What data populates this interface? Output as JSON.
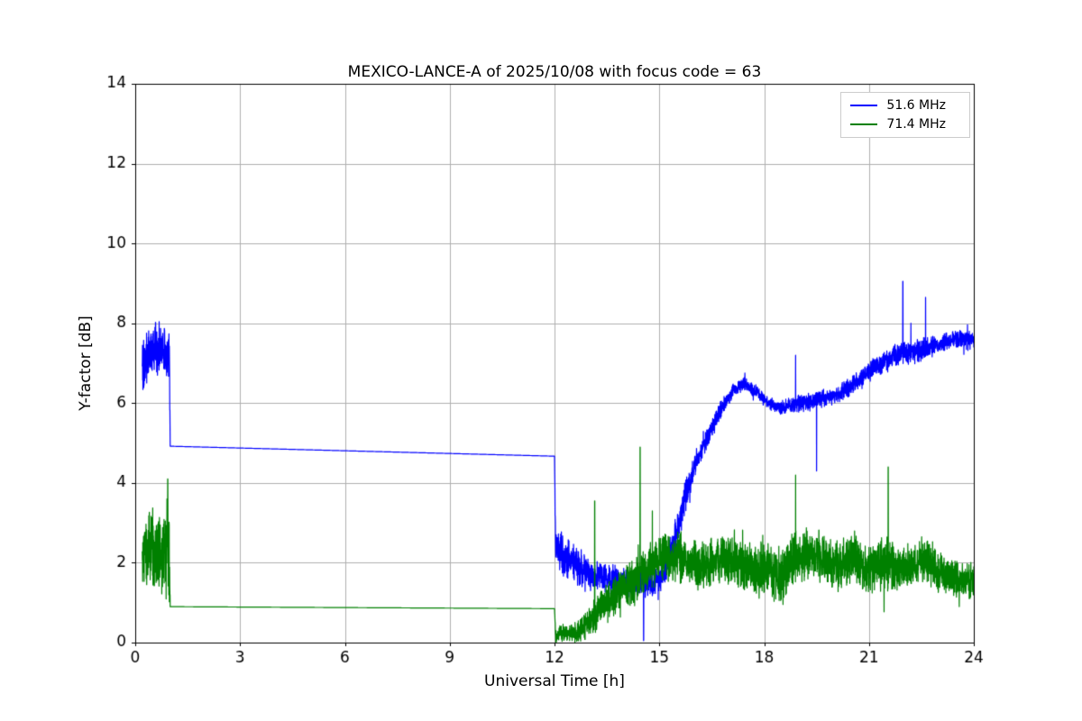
{
  "chart_data": {
    "type": "line",
    "title": "MEXICO-LANCE-A of 2025/10/08 with focus code = 63",
    "xlabel": "Universal Time [h]",
    "ylabel": "Y-factor [dB]",
    "xlim": [
      0,
      24
    ],
    "ylim": [
      0,
      14
    ],
    "xticks": [
      0,
      3,
      6,
      9,
      12,
      15,
      18,
      21,
      24
    ],
    "yticks": [
      0,
      2,
      4,
      6,
      8,
      10,
      12,
      14
    ],
    "grid": true,
    "grid_color": "#b0b0b0",
    "axes_color": "#000000",
    "background": "#ffffff",
    "legend_position": "upper right",
    "series": [
      {
        "name": "51.6 MHz",
        "color": "#0000ff",
        "seed": 101,
        "sample_step": 0.004,
        "line_width": 1.2,
        "anchors": [
          [
            0.2,
            7.0,
            0.5
          ],
          [
            0.35,
            7.1,
            0.55
          ],
          [
            0.55,
            7.4,
            0.5
          ],
          [
            0.8,
            7.4,
            0.45
          ],
          [
            0.98,
            7.2,
            0.5
          ],
          [
            1.0,
            4.92,
            0
          ],
          [
            12.0,
            4.67,
            0
          ],
          [
            12.03,
            2.35,
            0.4
          ],
          [
            12.5,
            2.0,
            0.35
          ],
          [
            13.0,
            1.7,
            0.3
          ],
          [
            13.6,
            1.6,
            0.25
          ],
          [
            14.2,
            1.5,
            0.22
          ],
          [
            14.8,
            1.45,
            0.22
          ],
          [
            15.1,
            1.7,
            0.25
          ],
          [
            15.4,
            2.5,
            0.3
          ],
          [
            15.7,
            3.5,
            0.3
          ],
          [
            16.0,
            4.4,
            0.22
          ],
          [
            16.4,
            5.2,
            0.18
          ],
          [
            16.8,
            5.9,
            0.15
          ],
          [
            17.1,
            6.3,
            0.12
          ],
          [
            17.4,
            6.5,
            0.12
          ],
          [
            17.8,
            6.25,
            0.12
          ],
          [
            18.1,
            6.0,
            0.12
          ],
          [
            18.5,
            5.9,
            0.13
          ],
          [
            19.0,
            6.0,
            0.15
          ],
          [
            19.6,
            6.1,
            0.15
          ],
          [
            20.1,
            6.2,
            0.15
          ],
          [
            20.6,
            6.5,
            0.17
          ],
          [
            21.0,
            6.8,
            0.18
          ],
          [
            21.4,
            7.0,
            0.2
          ],
          [
            21.9,
            7.25,
            0.2
          ],
          [
            22.4,
            7.3,
            0.2
          ],
          [
            22.9,
            7.45,
            0.16
          ],
          [
            23.4,
            7.6,
            0.15
          ],
          [
            24.0,
            7.6,
            0.15
          ]
        ],
        "spikes": [
          [
            14.55,
            0.05
          ],
          [
            18.9,
            7.2
          ],
          [
            19.5,
            4.3
          ],
          [
            21.97,
            9.05
          ],
          [
            22.2,
            8.0
          ],
          [
            22.62,
            8.65
          ]
        ]
      },
      {
        "name": "71.4 MHz",
        "color": "#008000",
        "seed": 202,
        "sample_step": 0.004,
        "line_width": 1.2,
        "anchors": [
          [
            0.2,
            2.2,
            0.6
          ],
          [
            0.5,
            2.3,
            0.7
          ],
          [
            0.8,
            2.2,
            0.75
          ],
          [
            0.97,
            2.3,
            0.8
          ],
          [
            1.0,
            0.9,
            0
          ],
          [
            12.0,
            0.85,
            0
          ],
          [
            12.03,
            0.18,
            0.15
          ],
          [
            12.7,
            0.28,
            0.2
          ],
          [
            13.1,
            0.6,
            0.3
          ],
          [
            13.6,
            1.1,
            0.35
          ],
          [
            14.1,
            1.5,
            0.38
          ],
          [
            14.6,
            1.8,
            0.4
          ],
          [
            15.0,
            2.1,
            0.42
          ],
          [
            15.5,
            2.2,
            0.45
          ],
          [
            16.0,
            1.9,
            0.42
          ],
          [
            16.5,
            2.0,
            0.45
          ],
          [
            17.0,
            2.1,
            0.42
          ],
          [
            17.5,
            1.9,
            0.45
          ],
          [
            18.0,
            1.8,
            0.5
          ],
          [
            18.5,
            1.7,
            0.5
          ],
          [
            19.0,
            2.2,
            0.5
          ],
          [
            19.5,
            2.2,
            0.45
          ],
          [
            20.0,
            1.9,
            0.45
          ],
          [
            20.5,
            2.1,
            0.45
          ],
          [
            21.0,
            1.8,
            0.42
          ],
          [
            21.5,
            2.0,
            0.5
          ],
          [
            22.0,
            1.8,
            0.4
          ],
          [
            22.5,
            2.1,
            0.38
          ],
          [
            23.0,
            1.8,
            0.35
          ],
          [
            23.5,
            1.6,
            0.32
          ],
          [
            24.0,
            1.55,
            0.3
          ]
        ],
        "spikes": [
          [
            0.93,
            4.1
          ],
          [
            13.15,
            3.55
          ],
          [
            14.45,
            4.9
          ],
          [
            14.8,
            3.3
          ],
          [
            18.9,
            4.2
          ],
          [
            21.55,
            4.4
          ]
        ]
      }
    ]
  }
}
